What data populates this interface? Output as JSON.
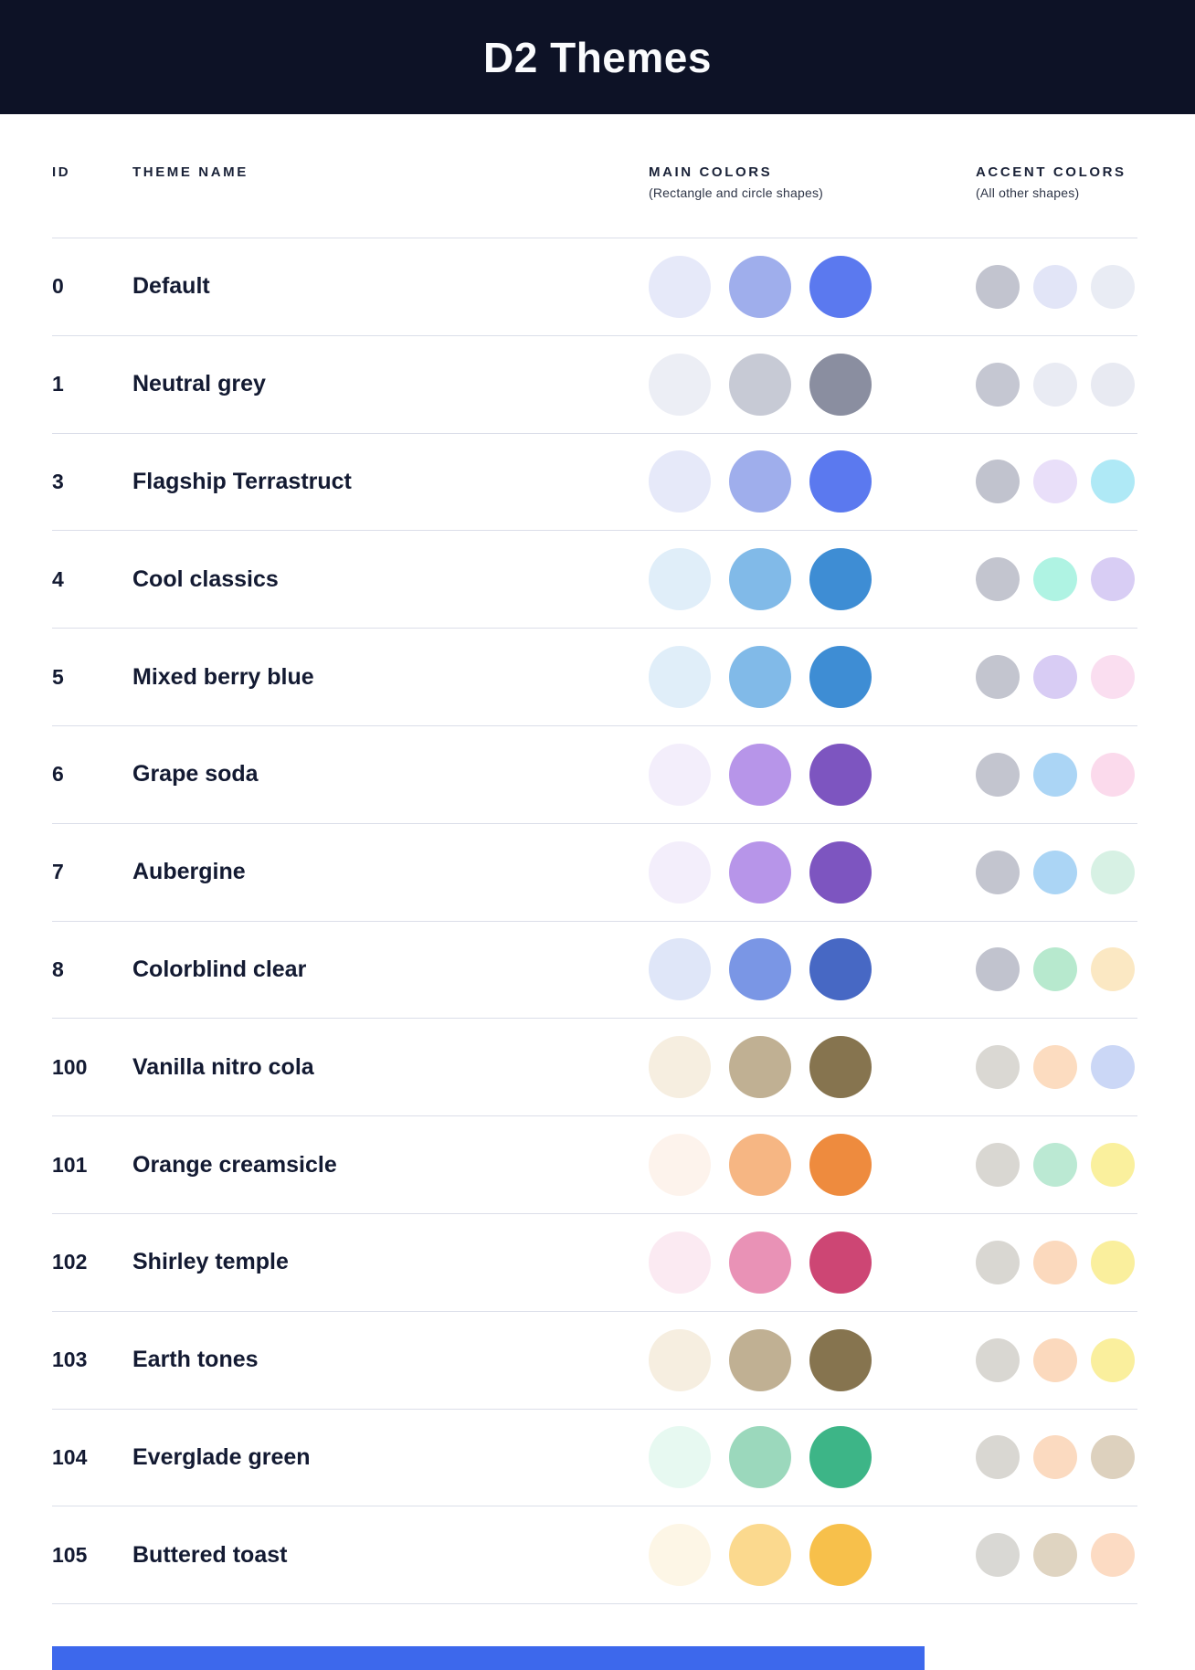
{
  "header": {
    "title": "D2 Themes",
    "bg": "#0d1226",
    "text_color": "#fafbfd"
  },
  "columns": {
    "id_label": "ID",
    "name_label": "THEME NAME",
    "main_label": "MAIN COLORS",
    "main_sublabel": "(Rectangle and circle shapes)",
    "accent_label": "ACCENT COLORS",
    "accent_sublabel": "(All other shapes)"
  },
  "themes": [
    {
      "id": "0",
      "name": "Default",
      "main": [
        "#e6e9f9",
        "#9faeec",
        "#5b79ef"
      ],
      "accent": [
        "#c2c4cf",
        "#e2e5f7",
        "#e9ecf4"
      ]
    },
    {
      "id": "1",
      "name": "Neutral grey",
      "main": [
        "#eceef5",
        "#c7cad5",
        "#8a8ea0"
      ],
      "accent": [
        "#c5c7d2",
        "#e9ebf3",
        "#e8eaf2"
      ]
    },
    {
      "id": "3",
      "name": "Flagship Terrastruct",
      "main": [
        "#e6e9f9",
        "#9faeec",
        "#5b79ef"
      ],
      "accent": [
        "#c1c3ce",
        "#e9dff9",
        "#afe9f6"
      ]
    },
    {
      "id": "4",
      "name": "Cool classics",
      "main": [
        "#e0eef9",
        "#81bae8",
        "#3e8dd4"
      ],
      "accent": [
        "#c3c5cf",
        "#aff3e3",
        "#d8cdf4"
      ]
    },
    {
      "id": "5",
      "name": "Mixed berry blue",
      "main": [
        "#e0eef9",
        "#81bae8",
        "#3e8dd4"
      ],
      "accent": [
        "#c3c5cf",
        "#d8ccf4",
        "#fadef0"
      ]
    },
    {
      "id": "6",
      "name": "Grape soda",
      "main": [
        "#f3eefb",
        "#b795e9",
        "#7d55c0"
      ],
      "accent": [
        "#c3c5cf",
        "#abd5f5",
        "#fbdaec"
      ]
    },
    {
      "id": "7",
      "name": "Aubergine",
      "main": [
        "#f3eefb",
        "#b795e9",
        "#7d55c0"
      ],
      "accent": [
        "#c3c5cf",
        "#abd5f5",
        "#d7f1e4"
      ]
    },
    {
      "id": "8",
      "name": "Colorblind clear",
      "main": [
        "#dfe6f8",
        "#7a96e5",
        "#4768c4"
      ],
      "accent": [
        "#c1c3ce",
        "#b7e9ce",
        "#fbe8c3"
      ]
    },
    {
      "id": "100",
      "name": "Vanilla nitro cola",
      "main": [
        "#f6eee0",
        "#c0b093",
        "#86744f"
      ],
      "accent": [
        "#dad8d3",
        "#fcdcc0",
        "#cbd7f6"
      ]
    },
    {
      "id": "101",
      "name": "Orange creamsicle",
      "main": [
        "#fdf3ec",
        "#f6b683",
        "#ee8b3e"
      ],
      "accent": [
        "#d9d7d2",
        "#bbe9d3",
        "#faf09d"
      ]
    },
    {
      "id": "102",
      "name": "Shirley temple",
      "main": [
        "#fbeaf2",
        "#e992b6",
        "#cd4674"
      ],
      "accent": [
        "#d9d7d2",
        "#fbd9bd",
        "#faef9d"
      ]
    },
    {
      "id": "103",
      "name": "Earth tones",
      "main": [
        "#f6eee0",
        "#c0b093",
        "#86744f"
      ],
      "accent": [
        "#d9d7d2",
        "#fbd9bd",
        "#faef9d"
      ]
    },
    {
      "id": "104",
      "name": "Everglade green",
      "main": [
        "#e7f9f1",
        "#9bd8bc",
        "#3db587"
      ],
      "accent": [
        "#d9d7d2",
        "#fbdac0",
        "#ddd1be"
      ]
    },
    {
      "id": "105",
      "name": "Buttered toast",
      "main": [
        "#fdf6e6",
        "#fbd98e",
        "#f7c04b"
      ],
      "accent": [
        "#d9d8d4",
        "#dfd4c1",
        "#fcdbc3"
      ]
    }
  ],
  "footer": {
    "bar_color": "#3d68ec"
  }
}
